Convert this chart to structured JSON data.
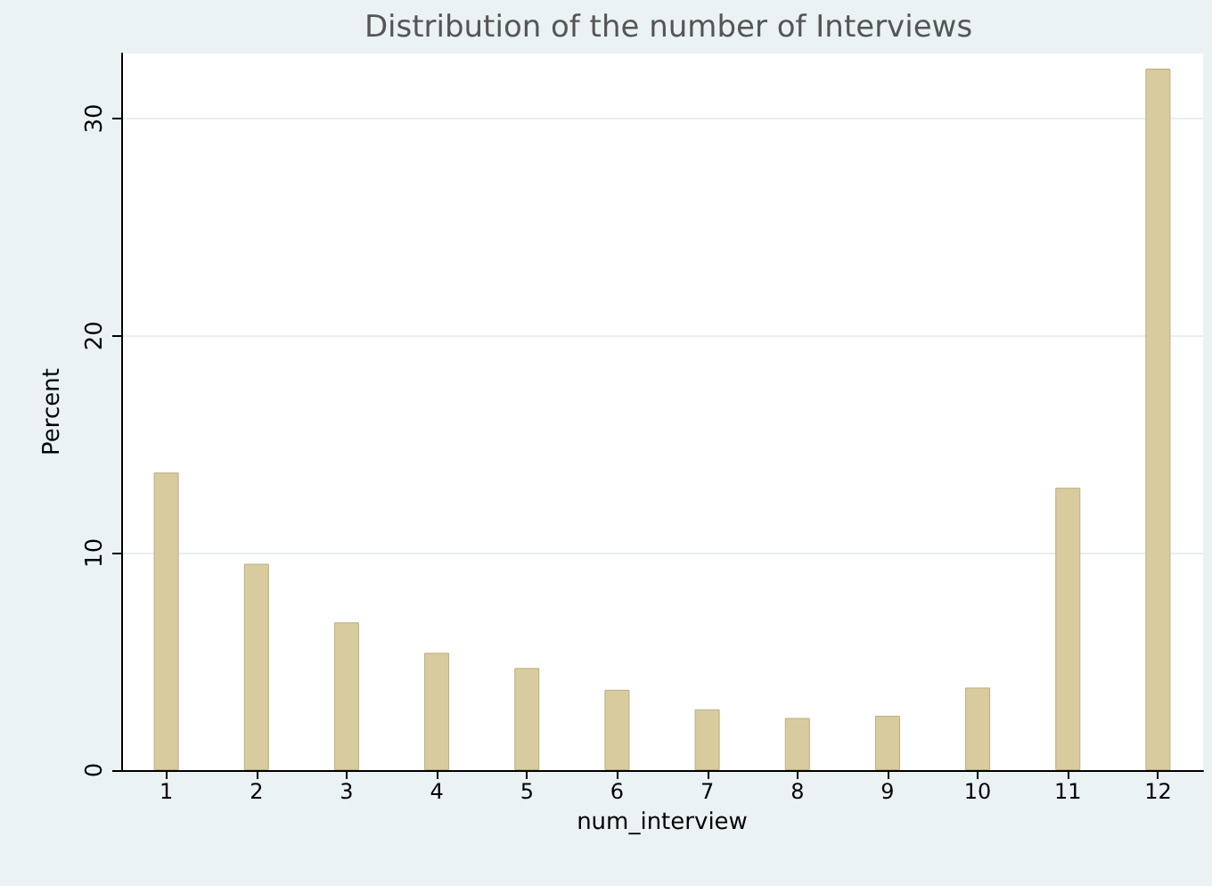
{
  "chart_data": {
    "type": "bar",
    "title": "Distribution of the number of Interviews",
    "xlabel": "num_interview",
    "ylabel": "Percent",
    "x": [
      1,
      2,
      3,
      4,
      5,
      6,
      7,
      8,
      9,
      10,
      11,
      12
    ],
    "xlim": [
      0.5,
      12.5
    ],
    "xticks": [
      1,
      2,
      3,
      4,
      5,
      6,
      7,
      8,
      9,
      10,
      11,
      12
    ],
    "values": [
      13.7,
      9.5,
      6.8,
      5.4,
      4.7,
      3.7,
      2.8,
      2.4,
      2.5,
      3.8,
      13.0,
      32.3
    ],
    "color": "#d8cc9f",
    "ylim": [
      0,
      33
    ],
    "yticks": [
      0,
      10,
      20,
      30
    ],
    "grid": "y"
  }
}
